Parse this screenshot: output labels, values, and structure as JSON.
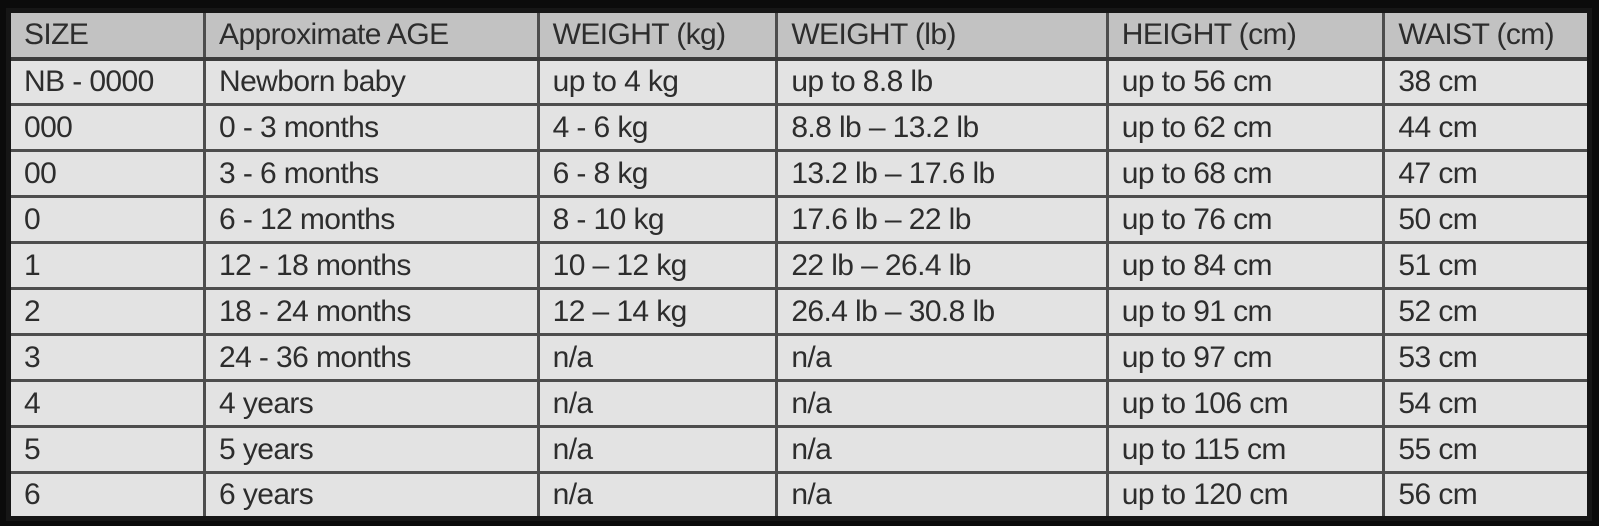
{
  "colors": {
    "page_background": "#0b0b0b",
    "header_background": "#c2c2c2",
    "cell_background": "#e3e3e3",
    "grid_border": "#4d4d4d",
    "outer_border": "#161616",
    "text": "#2d2d2d"
  },
  "chart_data": {
    "type": "table",
    "columns": [
      "SIZE",
      "Approximate AGE",
      "WEIGHT (kg)",
      "WEIGHT (lb)",
      "HEIGHT (cm)",
      "WAIST (cm)"
    ],
    "rows": [
      [
        "NB - 0000",
        "Newborn baby",
        "up to 4 kg",
        "up to 8.8 lb",
        "up to 56 cm",
        "38 cm"
      ],
      [
        "000",
        "0 - 3 months",
        "4 - 6 kg",
        "8.8 lb – 13.2 lb",
        "up to 62 cm",
        "44 cm"
      ],
      [
        "00",
        "3 - 6 months",
        "6 - 8 kg",
        "13.2 lb – 17.6 lb",
        "up to 68 cm",
        "47 cm"
      ],
      [
        "0",
        "6 - 12 months",
        "8 - 10 kg",
        "17.6 lb – 22 lb",
        "up to 76 cm",
        "50 cm"
      ],
      [
        "1",
        "12 - 18 months",
        "10 – 12 kg",
        "22 lb – 26.4 lb",
        "up to 84 cm",
        "51 cm"
      ],
      [
        "2",
        "18 - 24 months",
        "12 – 14 kg",
        "26.4 lb – 30.8 lb",
        "up to 91 cm",
        "52 cm"
      ],
      [
        "3",
        "24 - 36 months",
        "n/a",
        "n/a",
        "up to 97 cm",
        "53 cm"
      ],
      [
        "4",
        "4 years",
        "n/a",
        "n/a",
        "up to 106 cm",
        "54 cm"
      ],
      [
        "5",
        "5 years",
        "n/a",
        "n/a",
        "up to 115 cm",
        "55 cm"
      ],
      [
        "6",
        "6 years",
        "n/a",
        "n/a",
        "up to 120 cm",
        "56 cm"
      ]
    ]
  }
}
